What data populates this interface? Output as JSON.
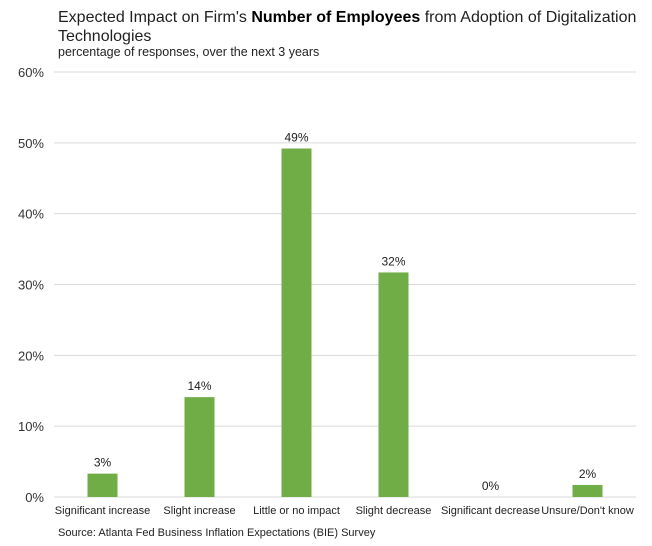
{
  "chart_data": {
    "type": "bar",
    "title_pre": "Expected Impact on Firm's ",
    "title_bold": "Number of Employees",
    "title_post": " from Adoption of Digitalization Technologies",
    "subtitle": "percentage of responses, over the next 3 years",
    "source": "Source: Atlanta Fed Business Inflation Expectations (BIE) Survey",
    "categories": [
      "Significant increase",
      "Slight  increase",
      "Little or no impact",
      "Slight decrease",
      "Significant decrease",
      "Unsure/Don't know"
    ],
    "values": [
      3.3,
      14.1,
      49.2,
      31.7,
      0,
      1.7
    ],
    "data_labels": [
      "3%",
      "14%",
      "49%",
      "32%",
      "0%",
      "2%"
    ],
    "y_ticks": [
      "0%",
      "10%",
      "20%",
      "30%",
      "40%",
      "50%",
      "60%"
    ],
    "ylim": [
      0,
      60
    ],
    "grid": true,
    "bar_color": "#70ad47",
    "grid_color": "#d9d9d9"
  }
}
